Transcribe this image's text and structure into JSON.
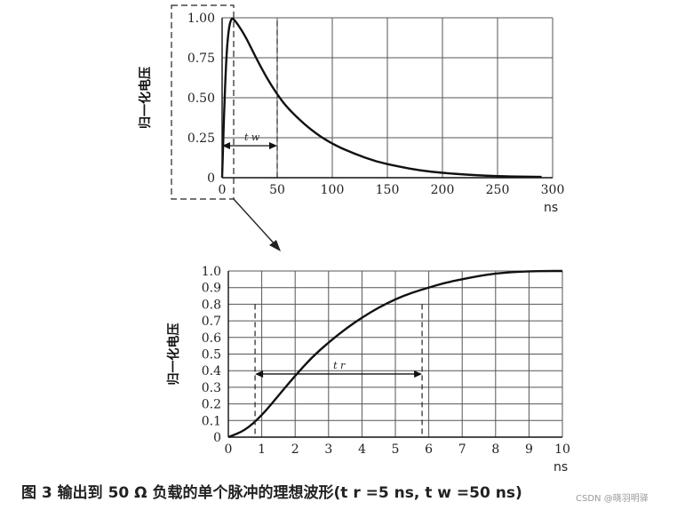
{
  "caption": "图 3   输出到 50 Ω 负载的单个脉冲的理想波形(t r =5 ns, t w =50 ns)",
  "watermark": "CSDN @晓羽明驿",
  "chart_data": [
    {
      "type": "line",
      "ylabel": "归一化电压",
      "xlabel": "ns",
      "xlim": [
        0,
        300
      ],
      "ylim": [
        0,
        1.0
      ],
      "x_ticks": [
        "0",
        "50",
        "100",
        "150",
        "200",
        "250",
        "300"
      ],
      "y_ticks": [
        "0",
        "0.25",
        "0.50",
        "0.75",
        "1.00"
      ],
      "grid": true,
      "annotation": "t w",
      "annotation_span": [
        0,
        50
      ],
      "series": [
        {
          "x": [
            0,
            2,
            4,
            6,
            8,
            10,
            20,
            30,
            40,
            50,
            60,
            80,
            100,
            120,
            140,
            160,
            180,
            200,
            220,
            240,
            260,
            290
          ],
          "values": [
            0,
            0.45,
            0.78,
            0.93,
            0.99,
            1.0,
            0.9,
            0.76,
            0.63,
            0.52,
            0.43,
            0.3,
            0.21,
            0.15,
            0.1,
            0.07,
            0.045,
            0.03,
            0.02,
            0.012,
            0.008,
            0.005
          ]
        }
      ]
    },
    {
      "type": "line",
      "ylabel": "归一化电压",
      "xlabel": "ns",
      "xlim": [
        0,
        10
      ],
      "ylim": [
        0,
        1.0
      ],
      "x_ticks": [
        "0",
        "1",
        "2",
        "3",
        "4",
        "5",
        "6",
        "7",
        "8",
        "9",
        "10"
      ],
      "y_ticks": [
        "0",
        "0.1",
        "0.2",
        "0.3",
        "0.4",
        "0.5",
        "0.6",
        "0.7",
        "0.8",
        "0.9",
        "1.0"
      ],
      "grid": true,
      "annotation": "t r",
      "annotation_span": [
        0.8,
        5.8
      ],
      "series": [
        {
          "x": [
            0,
            0.5,
            1,
            1.5,
            2,
            2.5,
            3,
            3.5,
            4,
            4.5,
            5,
            5.5,
            6,
            6.5,
            7,
            7.5,
            8,
            8.5,
            9,
            9.5,
            10
          ],
          "values": [
            0,
            0.04,
            0.13,
            0.25,
            0.37,
            0.48,
            0.57,
            0.65,
            0.72,
            0.78,
            0.83,
            0.87,
            0.9,
            0.93,
            0.95,
            0.97,
            0.985,
            0.993,
            0.998,
            1.0,
            1.0
          ]
        }
      ]
    }
  ]
}
